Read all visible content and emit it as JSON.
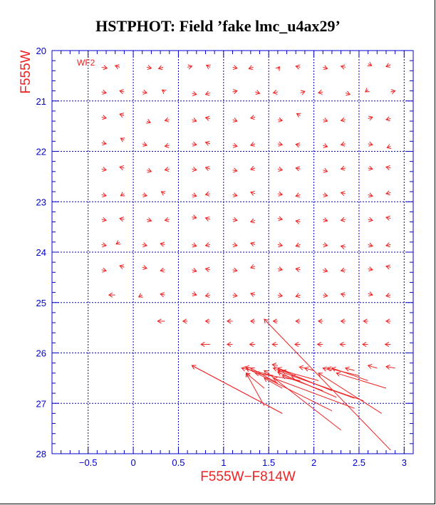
{
  "title": "HSTPHOT: Field ’fake lmc_u4ax29’",
  "colors": {
    "axis": "#0000cc",
    "grid": "#0000cc",
    "vectors": "#ee2222",
    "label": "#ee2222",
    "title": "#000000"
  },
  "chart_data": {
    "type": "scatter",
    "subtype": "color-magnitude vector (quiver) plot",
    "title": "HSTPHOT: Field ’fake lmc_u4ax29’",
    "xlabel": "F555W−F814W",
    "ylabel": "F555W",
    "panel_label": "WF2",
    "xlim": [
      -0.9,
      3.1
    ],
    "ylim": [
      28,
      20
    ],
    "y_inverted": true,
    "grid": true,
    "x_ticks": [
      -0.5,
      0,
      0.5,
      1,
      1.5,
      2,
      2.5,
      3
    ],
    "x_tick_labels": [
      "−0.5",
      "0",
      "0.5",
      "1",
      "1.5",
      "2",
      "2.5",
      "3"
    ],
    "y_ticks": [
      20,
      21,
      22,
      23,
      24,
      25,
      26,
      27,
      28
    ],
    "y_tick_labels": [
      "20",
      "21",
      "22",
      "23",
      "24",
      "25",
      "26",
      "27",
      "28"
    ],
    "grid_x": [
      -0.5,
      0,
      0.5,
      1,
      1.5,
      2,
      2.5,
      3
    ],
    "grid_y": [
      21,
      22,
      23,
      24,
      25,
      26,
      27
    ],
    "vectors": [
      {
        "x": -0.35,
        "y": 20.33,
        "dx": 0.06,
        "dy": 0.02
      },
      {
        "x": -0.15,
        "y": 20.33,
        "dx": -0.05,
        "dy": -0.03
      },
      {
        "x": 0.15,
        "y": 20.33,
        "dx": 0.05,
        "dy": 0.02
      },
      {
        "x": 0.33,
        "y": 20.33,
        "dx": -0.05,
        "dy": 0.03
      },
      {
        "x": 0.6,
        "y": 20.33,
        "dx": 0.05,
        "dy": -0.02
      },
      {
        "x": 0.85,
        "y": 20.33,
        "dx": -0.04,
        "dy": -0.04
      },
      {
        "x": 1.1,
        "y": 20.33,
        "dx": 0.05,
        "dy": 0.02
      },
      {
        "x": 1.33,
        "y": 20.33,
        "dx": -0.05,
        "dy": 0.03
      },
      {
        "x": 1.6,
        "y": 20.37,
        "dx": 0.02,
        "dy": -0.05
      },
      {
        "x": 1.85,
        "y": 20.33,
        "dx": -0.05,
        "dy": -0.02
      },
      {
        "x": 2.1,
        "y": 20.33,
        "dx": 0.05,
        "dy": 0.03
      },
      {
        "x": 2.35,
        "y": 20.33,
        "dx": -0.05,
        "dy": -0.02
      },
      {
        "x": 2.6,
        "y": 20.26,
        "dx": 0.04,
        "dy": 0.04
      },
      {
        "x": 2.85,
        "y": 20.28,
        "dx": -0.05,
        "dy": 0.04
      },
      {
        "x": -0.35,
        "y": 20.82,
        "dx": 0.05,
        "dy": 0.02
      },
      {
        "x": -0.1,
        "y": 20.82,
        "dx": -0.05,
        "dy": -0.02
      },
      {
        "x": 0.1,
        "y": 20.82,
        "dx": 0.05,
        "dy": 0.02
      },
      {
        "x": 0.35,
        "y": 20.82,
        "dx": -0.03,
        "dy": -0.04
      },
      {
        "x": 0.65,
        "y": 20.85,
        "dx": 0.05,
        "dy": 0.02
      },
      {
        "x": 0.85,
        "y": 20.84,
        "dx": -0.05,
        "dy": 0.03
      },
      {
        "x": 1.1,
        "y": 20.82,
        "dx": 0.05,
        "dy": -0.02
      },
      {
        "x": 1.35,
        "y": 20.82,
        "dx": 0.05,
        "dy": 0.03
      },
      {
        "x": 1.6,
        "y": 20.82,
        "dx": -0.05,
        "dy": 0.02
      },
      {
        "x": 1.85,
        "y": 20.84,
        "dx": 0.05,
        "dy": -0.03
      },
      {
        "x": 2.1,
        "y": 20.82,
        "dx": -0.05,
        "dy": 0.02
      },
      {
        "x": 2.35,
        "y": 20.84,
        "dx": 0.05,
        "dy": 0.03
      },
      {
        "x": 2.6,
        "y": 20.78,
        "dx": -0.03,
        "dy": 0.04
      },
      {
        "x": 2.85,
        "y": 20.82,
        "dx": 0.05,
        "dy": -0.02
      },
      {
        "x": -0.35,
        "y": 21.32,
        "dx": 0.05,
        "dy": 0.02
      },
      {
        "x": -0.1,
        "y": 21.29,
        "dx": -0.05,
        "dy": -0.03
      },
      {
        "x": 0.15,
        "y": 21.4,
        "dx": 0.04,
        "dy": 0.03
      },
      {
        "x": 0.4,
        "y": 21.37,
        "dx": -0.05,
        "dy": 0.02
      },
      {
        "x": 0.65,
        "y": 21.37,
        "dx": 0.05,
        "dy": 0.03
      },
      {
        "x": 0.85,
        "y": 21.35,
        "dx": -0.05,
        "dy": -0.02
      },
      {
        "x": 1.1,
        "y": 21.37,
        "dx": 0.05,
        "dy": 0.03
      },
      {
        "x": 1.35,
        "y": 21.32,
        "dx": -0.05,
        "dy": 0.02
      },
      {
        "x": 1.6,
        "y": 21.37,
        "dx": 0.05,
        "dy": 0.02
      },
      {
        "x": 1.85,
        "y": 21.29,
        "dx": -0.04,
        "dy": -0.04
      },
      {
        "x": 2.1,
        "y": 21.37,
        "dx": 0.05,
        "dy": 0.03
      },
      {
        "x": 2.35,
        "y": 21.37,
        "dx": -0.05,
        "dy": 0.02
      },
      {
        "x": 2.6,
        "y": 21.35,
        "dx": 0.05,
        "dy": -0.03
      },
      {
        "x": 2.85,
        "y": 21.35,
        "dx": -0.05,
        "dy": 0.02
      },
      {
        "x": -0.35,
        "y": 21.83,
        "dx": 0.05,
        "dy": 0.02
      },
      {
        "x": -0.1,
        "y": 21.78,
        "dx": -0.04,
        "dy": -0.04
      },
      {
        "x": 0.1,
        "y": 21.85,
        "dx": 0.05,
        "dy": 0.03
      },
      {
        "x": 0.4,
        "y": 21.88,
        "dx": -0.05,
        "dy": 0.02
      },
      {
        "x": 0.65,
        "y": 21.85,
        "dx": 0.05,
        "dy": 0.02
      },
      {
        "x": 0.85,
        "y": 21.85,
        "dx": -0.05,
        "dy": -0.03
      },
      {
        "x": 1.1,
        "y": 21.88,
        "dx": 0.05,
        "dy": 0.02
      },
      {
        "x": 1.35,
        "y": 21.85,
        "dx": -0.05,
        "dy": 0.03
      },
      {
        "x": 1.6,
        "y": 21.85,
        "dx": 0.05,
        "dy": 0.02
      },
      {
        "x": 1.85,
        "y": 21.88,
        "dx": -0.05,
        "dy": -0.02
      },
      {
        "x": 2.1,
        "y": 21.88,
        "dx": 0.05,
        "dy": 0.03
      },
      {
        "x": 2.35,
        "y": 21.85,
        "dx": -0.05,
        "dy": 0.02
      },
      {
        "x": 2.6,
        "y": 21.85,
        "dx": 0.05,
        "dy": 0.02
      },
      {
        "x": 2.85,
        "y": 21.9,
        "dx": -0.04,
        "dy": 0.03
      },
      {
        "x": -0.35,
        "y": 22.35,
        "dx": 0.05,
        "dy": 0.02
      },
      {
        "x": -0.1,
        "y": 22.33,
        "dx": -0.05,
        "dy": -0.02
      },
      {
        "x": 0.15,
        "y": 22.37,
        "dx": 0.05,
        "dy": 0.03
      },
      {
        "x": 0.4,
        "y": 22.35,
        "dx": -0.05,
        "dy": 0.02
      },
      {
        "x": 0.65,
        "y": 22.35,
        "dx": 0.05,
        "dy": 0.02
      },
      {
        "x": 0.85,
        "y": 22.35,
        "dx": -0.05,
        "dy": -0.03
      },
      {
        "x": 1.1,
        "y": 22.37,
        "dx": 0.05,
        "dy": 0.02
      },
      {
        "x": 1.35,
        "y": 22.33,
        "dx": -0.05,
        "dy": 0.03
      },
      {
        "x": 1.6,
        "y": 22.35,
        "dx": 0.05,
        "dy": 0.02
      },
      {
        "x": 1.85,
        "y": 22.35,
        "dx": -0.05,
        "dy": -0.02
      },
      {
        "x": 2.1,
        "y": 22.37,
        "dx": 0.05,
        "dy": 0.03
      },
      {
        "x": 2.35,
        "y": 22.33,
        "dx": -0.05,
        "dy": 0.02
      },
      {
        "x": 2.6,
        "y": 22.33,
        "dx": 0.05,
        "dy": 0.02
      },
      {
        "x": 2.85,
        "y": 22.33,
        "dx": -0.05,
        "dy": -0.02
      },
      {
        "x": -0.35,
        "y": 22.86,
        "dx": 0.05,
        "dy": 0.02
      },
      {
        "x": -0.1,
        "y": 22.84,
        "dx": -0.04,
        "dy": 0.04
      },
      {
        "x": 0.1,
        "y": 22.86,
        "dx": 0.05,
        "dy": 0.02
      },
      {
        "x": 0.35,
        "y": 22.84,
        "dx": -0.04,
        "dy": -0.04
      },
      {
        "x": 0.65,
        "y": 22.86,
        "dx": 0.05,
        "dy": 0.03
      },
      {
        "x": 0.85,
        "y": 22.84,
        "dx": -0.05,
        "dy": 0.02
      },
      {
        "x": 1.1,
        "y": 22.86,
        "dx": 0.05,
        "dy": 0.02
      },
      {
        "x": 1.35,
        "y": 22.84,
        "dx": -0.05,
        "dy": -0.03
      },
      {
        "x": 1.6,
        "y": 22.84,
        "dx": 0.05,
        "dy": 0.02
      },
      {
        "x": 1.85,
        "y": 22.86,
        "dx": -0.05,
        "dy": 0.03
      },
      {
        "x": 2.1,
        "y": 22.86,
        "dx": 0.05,
        "dy": 0.02
      },
      {
        "x": 2.35,
        "y": 22.84,
        "dx": -0.05,
        "dy": -0.02
      },
      {
        "x": 2.6,
        "y": 22.86,
        "dx": 0.05,
        "dy": 0.03
      },
      {
        "x": 2.85,
        "y": 22.82,
        "dx": -0.05,
        "dy": 0.02
      },
      {
        "x": -0.35,
        "y": 23.35,
        "dx": 0.05,
        "dy": 0.02
      },
      {
        "x": -0.1,
        "y": 23.35,
        "dx": -0.05,
        "dy": -0.02
      },
      {
        "x": 0.15,
        "y": 23.35,
        "dx": 0.05,
        "dy": 0.03
      },
      {
        "x": 0.4,
        "y": 23.35,
        "dx": -0.05,
        "dy": 0.02
      },
      {
        "x": 0.65,
        "y": 23.3,
        "dx": 0.05,
        "dy": 0.02
      },
      {
        "x": 0.85,
        "y": 23.35,
        "dx": -0.05,
        "dy": -0.03
      },
      {
        "x": 1.1,
        "y": 23.35,
        "dx": 0.05,
        "dy": 0.02
      },
      {
        "x": 1.35,
        "y": 23.37,
        "dx": -0.05,
        "dy": 0.03
      },
      {
        "x": 1.6,
        "y": 23.33,
        "dx": 0.05,
        "dy": 0.02
      },
      {
        "x": 1.85,
        "y": 23.4,
        "dx": -0.05,
        "dy": -0.02
      },
      {
        "x": 2.1,
        "y": 23.35,
        "dx": 0.05,
        "dy": 0.03
      },
      {
        "x": 2.35,
        "y": 23.35,
        "dx": -0.05,
        "dy": 0.02
      },
      {
        "x": 2.6,
        "y": 23.35,
        "dx": 0.05,
        "dy": 0.02
      },
      {
        "x": 2.85,
        "y": 23.33,
        "dx": -0.05,
        "dy": -0.02
      },
      {
        "x": -0.35,
        "y": 23.85,
        "dx": 0.05,
        "dy": 0.02
      },
      {
        "x": -0.15,
        "y": 23.8,
        "dx": -0.04,
        "dy": 0.04
      },
      {
        "x": 0.1,
        "y": 23.85,
        "dx": 0.05,
        "dy": 0.02
      },
      {
        "x": 0.35,
        "y": 23.85,
        "dx": -0.05,
        "dy": -0.02
      },
      {
        "x": 0.65,
        "y": 23.85,
        "dx": 0.05,
        "dy": 0.03
      },
      {
        "x": 0.85,
        "y": 23.85,
        "dx": -0.05,
        "dy": 0.02
      },
      {
        "x": 1.1,
        "y": 23.85,
        "dx": 0.05,
        "dy": 0.02
      },
      {
        "x": 1.35,
        "y": 23.85,
        "dx": -0.05,
        "dy": -0.03
      },
      {
        "x": 1.6,
        "y": 23.85,
        "dx": 0.05,
        "dy": 0.02
      },
      {
        "x": 1.85,
        "y": 23.85,
        "dx": -0.05,
        "dy": 0.03
      },
      {
        "x": 2.1,
        "y": 23.85,
        "dx": 0.05,
        "dy": 0.02
      },
      {
        "x": 2.35,
        "y": 23.9,
        "dx": -0.05,
        "dy": -0.02
      },
      {
        "x": 2.6,
        "y": 23.85,
        "dx": 0.05,
        "dy": 0.03
      },
      {
        "x": 2.85,
        "y": 23.85,
        "dx": -0.05,
        "dy": 0.02
      },
      {
        "x": -0.35,
        "y": 24.35,
        "dx": 0.05,
        "dy": 0.02
      },
      {
        "x": -0.1,
        "y": 24.3,
        "dx": -0.05,
        "dy": -0.03
      },
      {
        "x": 0.1,
        "y": 24.3,
        "dx": 0.05,
        "dy": 0.02
      },
      {
        "x": 0.35,
        "y": 24.35,
        "dx": -0.05,
        "dy": 0.02
      },
      {
        "x": 0.65,
        "y": 24.35,
        "dx": 0.05,
        "dy": 0.03
      },
      {
        "x": 0.85,
        "y": 24.35,
        "dx": -0.05,
        "dy": -0.02
      },
      {
        "x": 1.1,
        "y": 24.35,
        "dx": 0.05,
        "dy": 0.02
      },
      {
        "x": 1.35,
        "y": 24.28,
        "dx": -0.05,
        "dy": 0.03
      },
      {
        "x": 1.6,
        "y": 24.33,
        "dx": 0.05,
        "dy": 0.02
      },
      {
        "x": 1.85,
        "y": 24.35,
        "dx": -0.05,
        "dy": -0.02
      },
      {
        "x": 2.1,
        "y": 24.35,
        "dx": 0.05,
        "dy": 0.03
      },
      {
        "x": 2.35,
        "y": 24.35,
        "dx": -0.05,
        "dy": 0.02
      },
      {
        "x": 2.6,
        "y": 24.33,
        "dx": 0.05,
        "dy": 0.02
      },
      {
        "x": 2.85,
        "y": 24.3,
        "dx": -0.05,
        "dy": -0.02
      },
      {
        "x": -0.2,
        "y": 24.85,
        "dx": -0.07,
        "dy": 0.0
      },
      {
        "x": 0.1,
        "y": 24.85,
        "dx": -0.04,
        "dy": 0.04
      },
      {
        "x": 0.35,
        "y": 24.85,
        "dx": -0.05,
        "dy": -0.02
      },
      {
        "x": 0.65,
        "y": 24.82,
        "dx": 0.05,
        "dy": 0.03
      },
      {
        "x": 0.85,
        "y": 24.85,
        "dx": -0.05,
        "dy": 0.02
      },
      {
        "x": 1.1,
        "y": 24.85,
        "dx": 0.05,
        "dy": 0.02
      },
      {
        "x": 1.35,
        "y": 24.85,
        "dx": -0.05,
        "dy": -0.03
      },
      {
        "x": 1.6,
        "y": 24.85,
        "dx": 0.05,
        "dy": 0.02
      },
      {
        "x": 1.85,
        "y": 24.85,
        "dx": -0.05,
        "dy": 0.03
      },
      {
        "x": 2.1,
        "y": 24.85,
        "dx": 0.05,
        "dy": 0.02
      },
      {
        "x": 2.35,
        "y": 24.85,
        "dx": -0.05,
        "dy": -0.02
      },
      {
        "x": 2.6,
        "y": 24.82,
        "dx": 0.05,
        "dy": 0.03
      },
      {
        "x": 2.85,
        "y": 24.85,
        "dx": -0.05,
        "dy": 0.02
      },
      {
        "x": 0.35,
        "y": 25.37,
        "dx": -0.08,
        "dy": 0.0
      },
      {
        "x": 0.6,
        "y": 25.37,
        "dx": -0.05,
        "dy": 0.0
      },
      {
        "x": 0.85,
        "y": 25.37,
        "dx": -0.05,
        "dy": 0.0
      },
      {
        "x": 1.1,
        "y": 25.37,
        "dx": -0.06,
        "dy": 0.0
      },
      {
        "x": 1.35,
        "y": 25.37,
        "dx": -0.05,
        "dy": 0.0
      },
      {
        "x": 1.6,
        "y": 25.37,
        "dx": -0.05,
        "dy": 0.0
      },
      {
        "x": 1.85,
        "y": 25.37,
        "dx": -0.05,
        "dy": 0.0
      },
      {
        "x": 2.1,
        "y": 25.37,
        "dx": -0.05,
        "dy": 0.0
      },
      {
        "x": 2.35,
        "y": 25.37,
        "dx": -0.05,
        "dy": 0.0
      },
      {
        "x": 2.6,
        "y": 25.37,
        "dx": -0.05,
        "dy": 0.0
      },
      {
        "x": 2.85,
        "y": 25.37,
        "dx": -0.05,
        "dy": 0.0
      },
      {
        "x": 0.85,
        "y": 25.83,
        "dx": -0.1,
        "dy": 0.0
      },
      {
        "x": 1.1,
        "y": 25.83,
        "dx": -0.06,
        "dy": 0.0
      },
      {
        "x": 1.35,
        "y": 25.83,
        "dx": -0.06,
        "dy": 0.0
      },
      {
        "x": 1.6,
        "y": 25.83,
        "dx": -0.06,
        "dy": 0.0
      },
      {
        "x": 1.85,
        "y": 25.83,
        "dx": -0.06,
        "dy": 0.0
      },
      {
        "x": 2.1,
        "y": 25.83,
        "dx": -0.06,
        "dy": 0.0
      },
      {
        "x": 2.35,
        "y": 25.83,
        "dx": -0.06,
        "dy": 0.0
      },
      {
        "x": 2.6,
        "y": 25.83,
        "dx": -0.06,
        "dy": 0.0
      },
      {
        "x": 2.85,
        "y": 25.83,
        "dx": -0.06,
        "dy": 0.0
      },
      {
        "x": 2.85,
        "y": 27.93,
        "dx": -1.4,
        "dy": -2.6
      },
      {
        "x": 1.65,
        "y": 27.2,
        "dx": -1.0,
        "dy": -0.95
      },
      {
        "x": 2.2,
        "y": 27.15,
        "dx": -0.95,
        "dy": -0.85
      },
      {
        "x": 2.3,
        "y": 27.53,
        "dx": -0.85,
        "dy": -1.18
      },
      {
        "x": 2.45,
        "y": 27.1,
        "dx": -0.9,
        "dy": -0.6
      },
      {
        "x": 2.55,
        "y": 26.95,
        "dx": -0.8,
        "dy": -0.5
      },
      {
        "x": 2.75,
        "y": 27.2,
        "dx": -0.7,
        "dy": -0.8
      },
      {
        "x": 2.45,
        "y": 26.9,
        "dx": -0.85,
        "dy": -0.55
      },
      {
        "x": 2.25,
        "y": 26.88,
        "dx": -0.65,
        "dy": -0.5
      },
      {
        "x": 2.2,
        "y": 26.75,
        "dx": -0.55,
        "dy": -0.4
      },
      {
        "x": 2.1,
        "y": 26.75,
        "dx": -0.45,
        "dy": -0.3
      },
      {
        "x": 2.8,
        "y": 26.7,
        "dx": -0.55,
        "dy": -0.3
      },
      {
        "x": 2.6,
        "y": 26.55,
        "dx": -0.4,
        "dy": -0.25
      },
      {
        "x": 2.5,
        "y": 26.45,
        "dx": -0.35,
        "dy": -0.15
      },
      {
        "x": 1.85,
        "y": 26.55,
        "dx": -0.5,
        "dy": -0.15
      },
      {
        "x": 1.55,
        "y": 26.45,
        "dx": -0.35,
        "dy": -0.15
      },
      {
        "x": 2.05,
        "y": 26.55,
        "dx": -0.5,
        "dy": -0.25
      },
      {
        "x": 1.75,
        "y": 26.4,
        "dx": -0.15,
        "dy": -0.1
      },
      {
        "x": 2.0,
        "y": 26.35,
        "dx": -0.1,
        "dy": -0.05
      },
      {
        "x": 2.2,
        "y": 26.35,
        "dx": -0.1,
        "dy": -0.05
      },
      {
        "x": 2.45,
        "y": 26.35,
        "dx": -0.1,
        "dy": -0.05
      },
      {
        "x": 2.7,
        "y": 26.3,
        "dx": -0.1,
        "dy": -0.05
      },
      {
        "x": 2.9,
        "y": 26.3,
        "dx": -0.1,
        "dy": -0.03
      },
      {
        "x": 1.9,
        "y": 26.3,
        "dx": -0.06,
        "dy": -0.02
      },
      {
        "x": 1.6,
        "y": 26.25,
        "dx": -0.06,
        "dy": -0.02
      },
      {
        "x": 1.3,
        "y": 26.3,
        "dx": -0.06,
        "dy": -0.02
      },
      {
        "x": 1.65,
        "y": 26.7,
        "dx": -0.2,
        "dy": -0.2
      },
      {
        "x": 1.6,
        "y": 26.6,
        "dx": -0.3,
        "dy": -0.3
      },
      {
        "x": 1.45,
        "y": 27.05,
        "dx": -0.2,
        "dy": -0.65
      },
      {
        "x": 1.45,
        "y": 26.7,
        "dx": -0.2,
        "dy": -0.3
      },
      {
        "x": 1.65,
        "y": 27.2,
        "dx": -1.0,
        "dy": -0.95
      }
    ]
  }
}
